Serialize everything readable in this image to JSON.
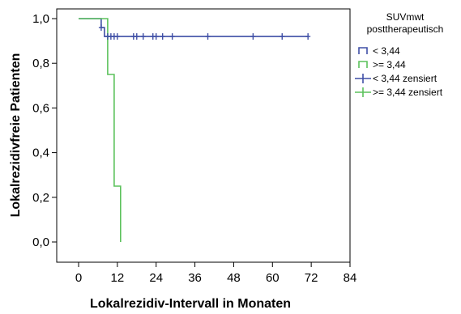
{
  "chart_data": {
    "type": "line",
    "subtype": "kaplan-meier-step",
    "xlabel": "Lokalrezidiv-Intervall in Monaten",
    "ylabel": "Lokalrezidivfreie Patienten",
    "xlim": [
      0,
      84
    ],
    "ylim": [
      0,
      1.0
    ],
    "xticks": [
      "0",
      "12",
      "24",
      "36",
      "48",
      "60",
      "72",
      "84"
    ],
    "yticks": [
      "0,0",
      "0,2",
      "0,4",
      "0,6",
      "0,8",
      "1,0"
    ],
    "grid": false,
    "legend": {
      "title_line1": "SUVmwt",
      "title_line2": "posttherapeutisch",
      "position": "right",
      "entries": [
        {
          "label": "< 3,44",
          "kind": "step",
          "color": "#3f4fa6"
        },
        {
          "label": ">= 3,44",
          "kind": "step",
          "color": "#5cc25c"
        },
        {
          "label": "< 3,44 zensiert",
          "kind": "censor",
          "color": "#3f4fa6"
        },
        {
          "label": ">= 3,44 zensiert",
          "kind": "censor",
          "color": "#5cc25c"
        }
      ]
    },
    "series": [
      {
        "label_ref": "< 3,44",
        "color": "#3f4fa6",
        "steps": [
          [
            0,
            1.0
          ],
          [
            7,
            1.0
          ],
          [
            7,
            0.96
          ],
          [
            8,
            0.96
          ],
          [
            8,
            0.92
          ],
          [
            71,
            0.92
          ]
        ],
        "censored": [
          [
            7,
            0.96
          ],
          [
            9,
            0.92
          ],
          [
            10,
            0.92
          ],
          [
            11,
            0.92
          ],
          [
            12,
            0.92
          ],
          [
            17,
            0.92
          ],
          [
            18,
            0.92
          ],
          [
            20,
            0.92
          ],
          [
            23,
            0.92
          ],
          [
            24,
            0.92
          ],
          [
            26,
            0.92
          ],
          [
            29,
            0.92
          ],
          [
            40,
            0.92
          ],
          [
            54,
            0.92
          ],
          [
            63,
            0.92
          ],
          [
            71,
            0.92
          ]
        ]
      },
      {
        "label_ref": ">= 3,44",
        "color": "#5cc25c",
        "steps": [
          [
            0,
            1.0
          ],
          [
            9,
            1.0
          ],
          [
            9,
            0.75
          ],
          [
            11,
            0.75
          ],
          [
            11,
            0.25
          ],
          [
            13,
            0.25
          ],
          [
            13,
            0.0
          ]
        ],
        "censored": []
      }
    ]
  }
}
